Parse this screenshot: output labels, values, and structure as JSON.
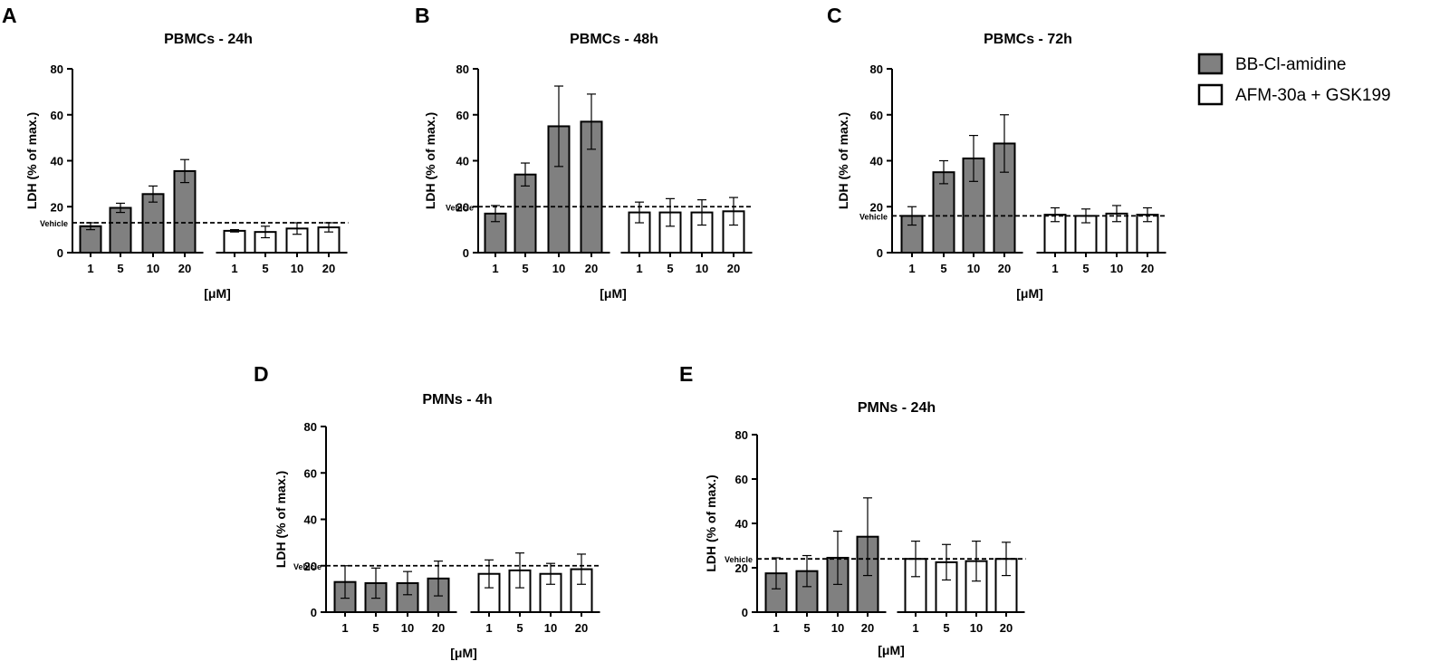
{
  "legend": [
    {
      "label": "BB-Cl-amidine",
      "fill": "#808080"
    },
    {
      "label": "AFM-30a + GSK199",
      "fill": "#ffffff"
    }
  ],
  "chart_data": [
    {
      "type": "bar",
      "letter": "A",
      "title": "PBMCs - 24h",
      "xlabel": "[μM]",
      "ylabel": "LDH (% of max.)",
      "ylim": [
        0,
        80
      ],
      "yticks": [
        0,
        20,
        40,
        60,
        80
      ],
      "vehicle_label": "Vehicle",
      "vehicle_value": 13,
      "categories": [
        "1",
        "5",
        "10",
        "20"
      ],
      "series": [
        {
          "name": "BB-Cl-amidine",
          "values": [
            11.5,
            19.5,
            25.5,
            35.5
          ],
          "errors": [
            1.5,
            2,
            3.5,
            5
          ]
        },
        {
          "name": "AFM-30a + GSK199",
          "values": [
            9.5,
            9,
            10.5,
            11
          ],
          "errors": [
            0.5,
            2.5,
            2.5,
            2
          ]
        }
      ]
    },
    {
      "type": "bar",
      "letter": "B",
      "title": "PBMCs - 48h",
      "xlabel": "[μM]",
      "ylabel": "LDH (% of max.)",
      "ylim": [
        0,
        80
      ],
      "yticks": [
        0,
        20,
        40,
        60,
        80
      ],
      "vehicle_label": "Vehicle",
      "vehicle_value": 20,
      "categories": [
        "1",
        "5",
        "10",
        "20"
      ],
      "series": [
        {
          "name": "BB-Cl-amidine",
          "values": [
            17,
            34,
            55,
            57
          ],
          "errors": [
            3.5,
            5,
            17.5,
            12
          ]
        },
        {
          "name": "AFM-30a + GSK199",
          "values": [
            17.5,
            17.5,
            17.5,
            18
          ],
          "errors": [
            4.5,
            6,
            5.5,
            6
          ]
        }
      ]
    },
    {
      "type": "bar",
      "letter": "C",
      "title": "PBMCs - 72h",
      "xlabel": "[μM]",
      "ylabel": "LDH (% of max.)",
      "ylim": [
        0,
        80
      ],
      "yticks": [
        0,
        20,
        40,
        60,
        80
      ],
      "vehicle_label": "Vehicle",
      "vehicle_value": 16,
      "categories": [
        "1",
        "5",
        "10",
        "20"
      ],
      "series": [
        {
          "name": "BB-Cl-amidine",
          "values": [
            16,
            35,
            41,
            47.5
          ],
          "errors": [
            4,
            5,
            10,
            12.5
          ]
        },
        {
          "name": "AFM-30a + GSK199",
          "values": [
            16.5,
            16,
            17,
            16.5
          ],
          "errors": [
            3,
            3,
            3.5,
            3
          ]
        }
      ]
    },
    {
      "type": "bar",
      "letter": "D",
      "title": "PMNs - 4h",
      "xlabel": "[μM]",
      "ylabel": "LDH (% of max.)",
      "ylim": [
        0,
        80
      ],
      "yticks": [
        0,
        20,
        40,
        60,
        80
      ],
      "vehicle_label": "Vehicle",
      "vehicle_value": 20,
      "categories": [
        "1",
        "5",
        "10",
        "20"
      ],
      "series": [
        {
          "name": "BB-Cl-amidine",
          "values": [
            13,
            12.5,
            12.5,
            14.5
          ],
          "errors": [
            7,
            6.5,
            5,
            7.5
          ]
        },
        {
          "name": "AFM-30a + GSK199",
          "values": [
            16.5,
            18,
            16.5,
            18.5
          ],
          "errors": [
            6,
            7.5,
            4.5,
            6.5
          ]
        }
      ]
    },
    {
      "type": "bar",
      "letter": "E",
      "title": "PMNs - 24h",
      "xlabel": "[μM]",
      "ylabel": "LDH (% of max.)",
      "ylim": [
        0,
        80
      ],
      "yticks": [
        0,
        20,
        40,
        60,
        80
      ],
      "vehicle_label": "Vehicle",
      "vehicle_value": 24,
      "categories": [
        "1",
        "5",
        "10",
        "20"
      ],
      "series": [
        {
          "name": "BB-Cl-amidine",
          "values": [
            17.5,
            18.5,
            24.5,
            34
          ],
          "errors": [
            7,
            7,
            12,
            17.5
          ]
        },
        {
          "name": "AFM-30a + GSK199",
          "values": [
            24,
            22.5,
            23,
            24
          ],
          "errors": [
            8,
            8,
            9,
            7.5
          ]
        }
      ]
    }
  ]
}
